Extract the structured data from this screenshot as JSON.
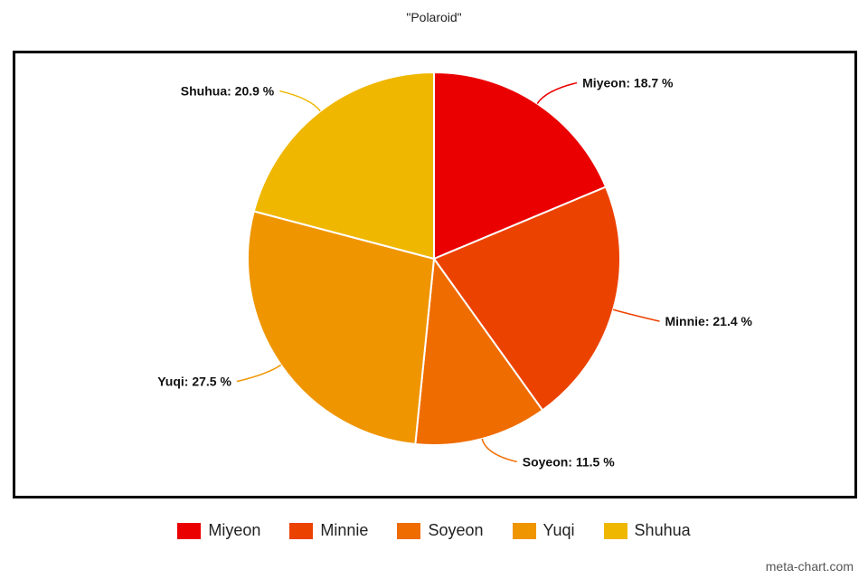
{
  "chart_data": {
    "type": "pie",
    "title": "\"Polaroid\"",
    "slices": [
      {
        "label": "Miyeon",
        "value": 18.7,
        "color": "#ea0000"
      },
      {
        "label": "Minnie",
        "value": 21.4,
        "color": "#ec4200"
      },
      {
        "label": "Soyeon",
        "value": 11.5,
        "color": "#ef6c00"
      },
      {
        "label": "Yuqi",
        "value": 27.5,
        "color": "#ef9500"
      },
      {
        "label": "Shuhua",
        "value": 20.9,
        "color": "#efb700"
      }
    ],
    "label_format": "{label}: {value} %",
    "legend_position": "bottom"
  },
  "watermark": "meta-chart.com"
}
